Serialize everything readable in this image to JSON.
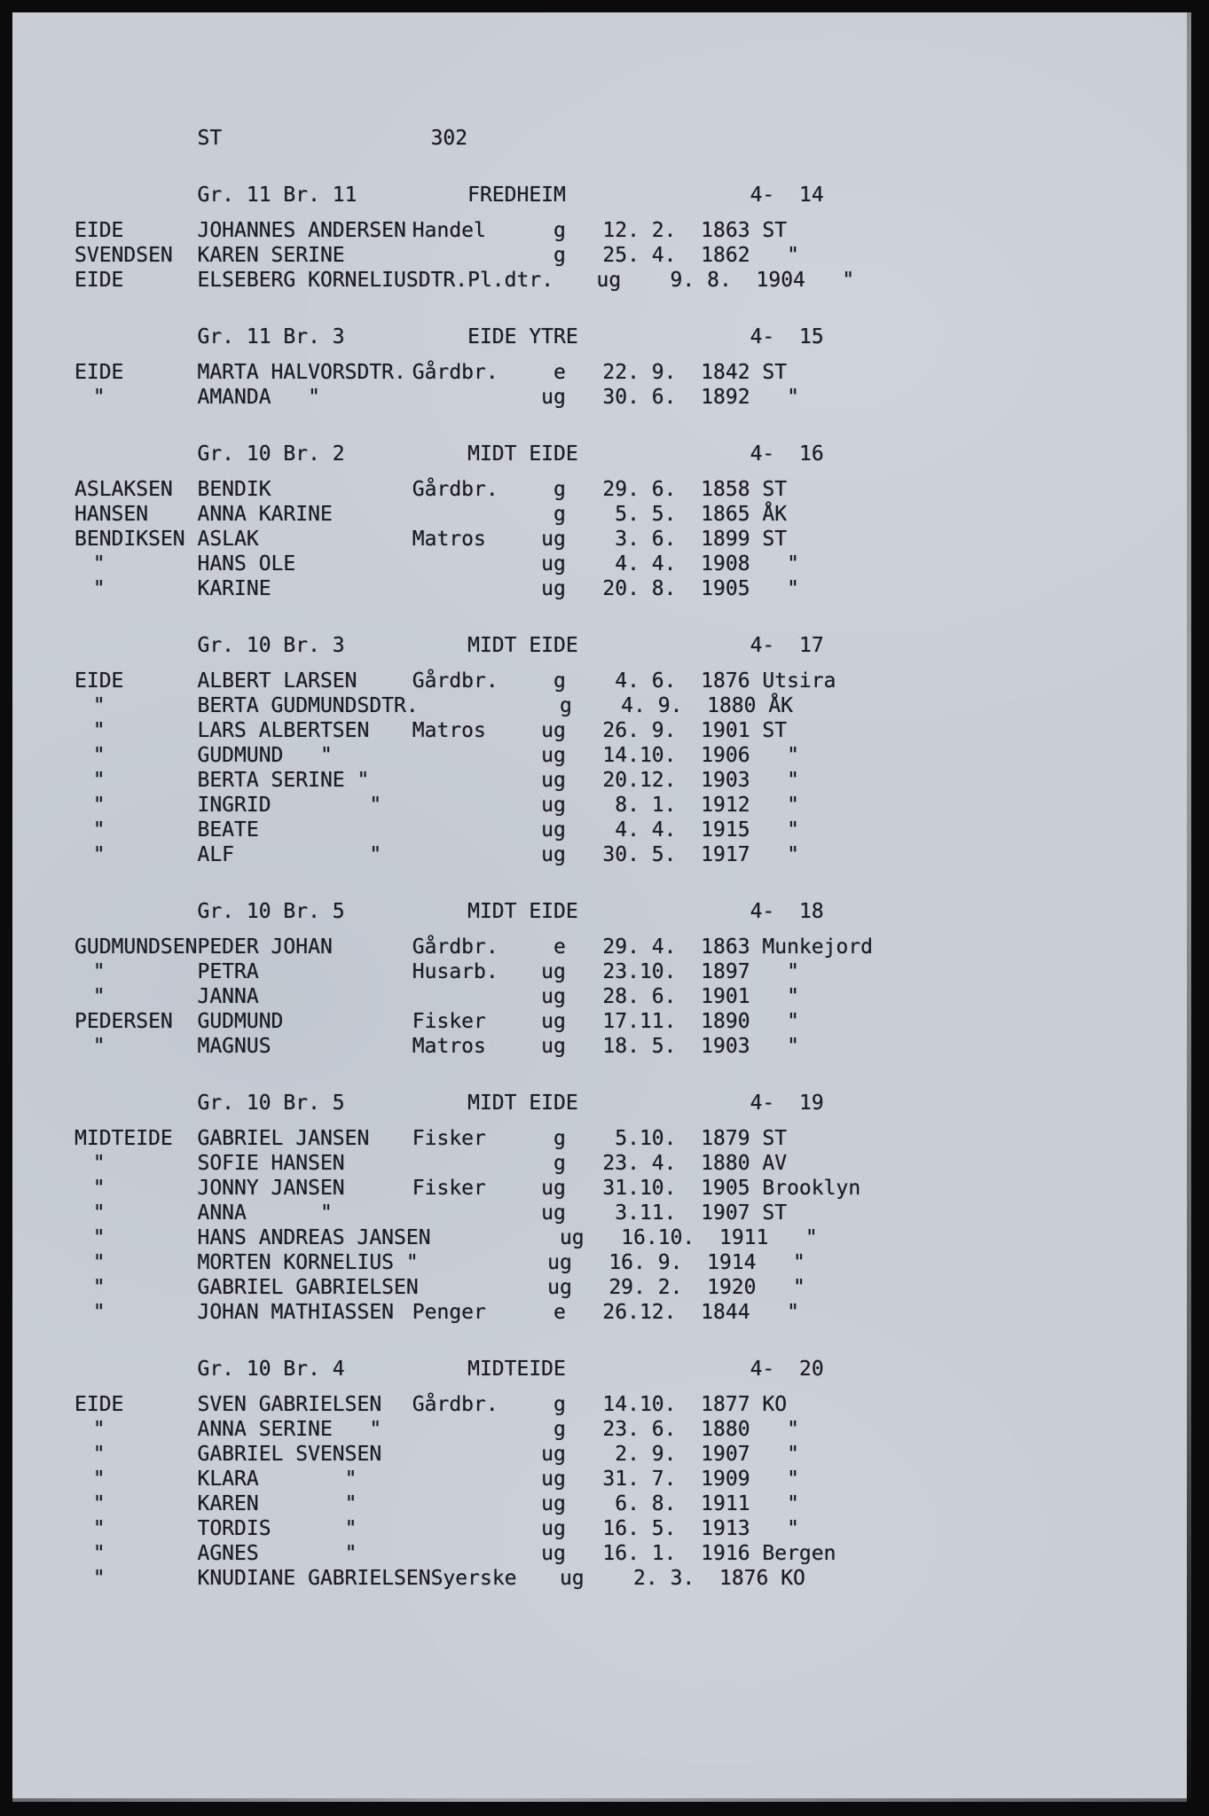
{
  "page": {
    "region_code": "ST",
    "page_number": "302"
  },
  "sections": [
    {
      "gr_br": "Gr. 11 Br. 11",
      "farm": "FREDHEIM",
      "ref": "4-  14",
      "rows": [
        {
          "surname": "EIDE",
          "name": "JOHANNES ANDERSEN",
          "occ": "Handel",
          "st": "g",
          "d": "12",
          "m": "2",
          "y": "1863",
          "place": "ST"
        },
        {
          "surname": "SVENDSEN",
          "name": "KAREN SERINE",
          "occ": "",
          "st": "g",
          "d": "25",
          "m": "4",
          "y": "1862",
          "place": "\""
        },
        {
          "surname": "EIDE",
          "name": "ELSEBERG KORNELIUSDTR.",
          "occ": "Pl.dtr.",
          "st": "ug",
          "d": "9",
          "m": "8",
          "y": "1904",
          "place": "\""
        }
      ]
    },
    {
      "gr_br": "Gr. 11 Br. 3",
      "farm": "EIDE YTRE",
      "ref": "4-  15",
      "rows": [
        {
          "surname": "EIDE",
          "name": "MARTA HALVORSDTR.",
          "occ": "Gårdbr.",
          "st": "e",
          "d": "22",
          "m": "9",
          "y": "1842",
          "place": "ST"
        },
        {
          "surname": "\"",
          "name": "AMANDA   \"",
          "occ": "",
          "st": "ug",
          "d": "30",
          "m": "6",
          "y": "1892",
          "place": "\""
        }
      ]
    },
    {
      "gr_br": "Gr. 10 Br. 2",
      "farm": "MIDT EIDE",
      "ref": "4-  16",
      "rows": [
        {
          "surname": "ASLAKSEN",
          "name": "BENDIK",
          "occ": "Gårdbr.",
          "st": "g",
          "d": "29",
          "m": "6",
          "y": "1858",
          "place": "ST"
        },
        {
          "surname": "HANSEN",
          "name": "ANNA KARINE",
          "occ": "",
          "st": "g",
          "d": "5",
          "m": "5",
          "y": "1865",
          "place": "ÅK"
        },
        {
          "surname": "BENDIKSEN",
          "name": "ASLAK",
          "occ": "Matros",
          "st": "ug",
          "d": "3",
          "m": "6",
          "y": "1899",
          "place": "ST"
        },
        {
          "surname": "\"",
          "name": "HANS OLE",
          "occ": "",
          "st": "ug",
          "d": "4",
          "m": "4",
          "y": "1908",
          "place": "\""
        },
        {
          "surname": "\"",
          "name": "KARINE",
          "occ": "",
          "st": "ug",
          "d": "20",
          "m": "8",
          "y": "1905",
          "place": "\""
        }
      ]
    },
    {
      "gr_br": "Gr. 10 Br. 3",
      "farm": "MIDT EIDE",
      "ref": "4-  17",
      "rows": [
        {
          "surname": "EIDE",
          "name": "ALBERT LARSEN",
          "occ": "Gårdbr.",
          "st": "g",
          "d": "4",
          "m": "6",
          "y": "1876",
          "place": "Utsira"
        },
        {
          "surname": "\"",
          "name": "BERTA GUDMUNDSDTR.",
          "occ": "",
          "st": "g",
          "d": "4",
          "m": "9",
          "y": "1880",
          "place": "ÅK"
        },
        {
          "surname": "\"",
          "name": "LARS ALBERTSEN",
          "occ": "Matros",
          "st": "ug",
          "d": "26",
          "m": "9",
          "y": "1901",
          "place": "ST"
        },
        {
          "surname": "\"",
          "name": "GUDMUND   \"",
          "occ": "",
          "st": "ug",
          "d": "14",
          "m": "10",
          "y": "1906",
          "place": "\""
        },
        {
          "surname": "\"",
          "name": "BERTA SERINE \"",
          "occ": "",
          "st": "ug",
          "d": "20",
          "m": "12",
          "y": "1903",
          "place": "\""
        },
        {
          "surname": "\"",
          "name": "INGRID        \"",
          "occ": "",
          "st": "ug",
          "d": "8",
          "m": "1",
          "y": "1912",
          "place": "\""
        },
        {
          "surname": "\"",
          "name": "BEATE",
          "occ": "",
          "st": "ug",
          "d": "4",
          "m": "4",
          "y": "1915",
          "place": "\""
        },
        {
          "surname": "\"",
          "name": "ALF           \"",
          "occ": "",
          "st": "ug",
          "d": "30",
          "m": "5",
          "y": "1917",
          "place": "\""
        }
      ]
    },
    {
      "gr_br": "Gr. 10 Br. 5",
      "farm": "MIDT EIDE",
      "ref": "4-  18",
      "rows": [
        {
          "surname": "GUDMUNDSEN",
          "name": "PEDER JOHAN",
          "occ": "Gårdbr.",
          "st": "e",
          "d": "29",
          "m": "4",
          "y": "1863",
          "place": "Munkejord"
        },
        {
          "surname": "\"",
          "name": "PETRA",
          "occ": "Husarb.",
          "st": "ug",
          "d": "23",
          "m": "10",
          "y": "1897",
          "place": "\""
        },
        {
          "surname": "\"",
          "name": "JANNA",
          "occ": "",
          "st": "ug",
          "d": "28",
          "m": "6",
          "y": "1901",
          "place": "\""
        },
        {
          "surname": "PEDERSEN",
          "name": "GUDMUND",
          "occ": "Fisker",
          "st": "ug",
          "d": "17",
          "m": "11",
          "y": "1890",
          "place": "\""
        },
        {
          "surname": "\"",
          "name": "MAGNUS",
          "occ": "Matros",
          "st": "ug",
          "d": "18",
          "m": "5",
          "y": "1903",
          "place": "\""
        }
      ]
    },
    {
      "gr_br": "Gr. 10 Br. 5",
      "farm": "MIDT EIDE",
      "ref": "4-  19",
      "rows": [
        {
          "surname": "MIDTEIDE",
          "name": "GABRIEL JANSEN",
          "occ": "Fisker",
          "st": "g",
          "d": "5",
          "m": "10",
          "y": "1879",
          "place": "ST"
        },
        {
          "surname": "\"",
          "name": "SOFIE HANSEN",
          "occ": "",
          "st": "g",
          "d": "23",
          "m": "4",
          "y": "1880",
          "place": "AV"
        },
        {
          "surname": "\"",
          "name": "JONNY JANSEN",
          "occ": "Fisker",
          "st": "ug",
          "d": "31",
          "m": "10",
          "y": "1905",
          "place": "Brooklyn"
        },
        {
          "surname": "\"",
          "name": "ANNA      \"",
          "occ": "",
          "st": "ug",
          "d": "3",
          "m": "11",
          "y": "1907",
          "place": "ST"
        },
        {
          "surname": "\"",
          "name": "HANS ANDREAS JANSEN",
          "occ": "",
          "st": "ug",
          "d": "16",
          "m": "10",
          "y": "1911",
          "place": "\""
        },
        {
          "surname": "\"",
          "name": "MORTEN KORNELIUS \"",
          "occ": "",
          "st": "ug",
          "d": "16",
          "m": "9",
          "y": "1914",
          "place": "\""
        },
        {
          "surname": "\"",
          "name": "GABRIEL GABRIELSEN",
          "occ": "",
          "st": "ug",
          "d": "29",
          "m": "2",
          "y": "1920",
          "place": "\""
        },
        {
          "surname": "\"",
          "name": "JOHAN MATHIASSEN",
          "occ": "Penger",
          "st": "e",
          "d": "26",
          "m": "12",
          "y": "1844",
          "place": "\""
        }
      ]
    },
    {
      "gr_br": "Gr. 10 Br. 4",
      "farm": "MIDTEIDE",
      "ref": "4-  20",
      "rows": [
        {
          "surname": "EIDE",
          "name": "SVEN GABRIELSEN",
          "occ": "Gårdbr.",
          "st": "g",
          "d": "14",
          "m": "10",
          "y": "1877",
          "place": "KO"
        },
        {
          "surname": "\"",
          "name": "ANNA SERINE   \"",
          "occ": "",
          "st": "g",
          "d": "23",
          "m": "6",
          "y": "1880",
          "place": "\""
        },
        {
          "surname": "\"",
          "name": "GABRIEL SVENSEN",
          "occ": "",
          "st": "ug",
          "d": "2",
          "m": "9",
          "y": "1907",
          "place": "\""
        },
        {
          "surname": "\"",
          "name": "KLARA       \"",
          "occ": "",
          "st": "ug",
          "d": "31",
          "m": "7",
          "y": "1909",
          "place": "\""
        },
        {
          "surname": "\"",
          "name": "KAREN       \"",
          "occ": "",
          "st": "ug",
          "d": "6",
          "m": "8",
          "y": "1911",
          "place": "\""
        },
        {
          "surname": "\"",
          "name": "TORDIS      \"",
          "occ": "",
          "st": "ug",
          "d": "16",
          "m": "5",
          "y": "1913",
          "place": "\""
        },
        {
          "surname": "\"",
          "name": "AGNES       \"",
          "occ": "",
          "st": "ug",
          "d": "16",
          "m": "1",
          "y": "1916",
          "place": "Bergen"
        },
        {
          "surname": "\"",
          "name": "KNUDIANE GABRIELSEN",
          "occ": "Syerske",
          "st": "ug",
          "d": "2",
          "m": "3",
          "y": "1876",
          "place": "KO"
        }
      ]
    }
  ]
}
